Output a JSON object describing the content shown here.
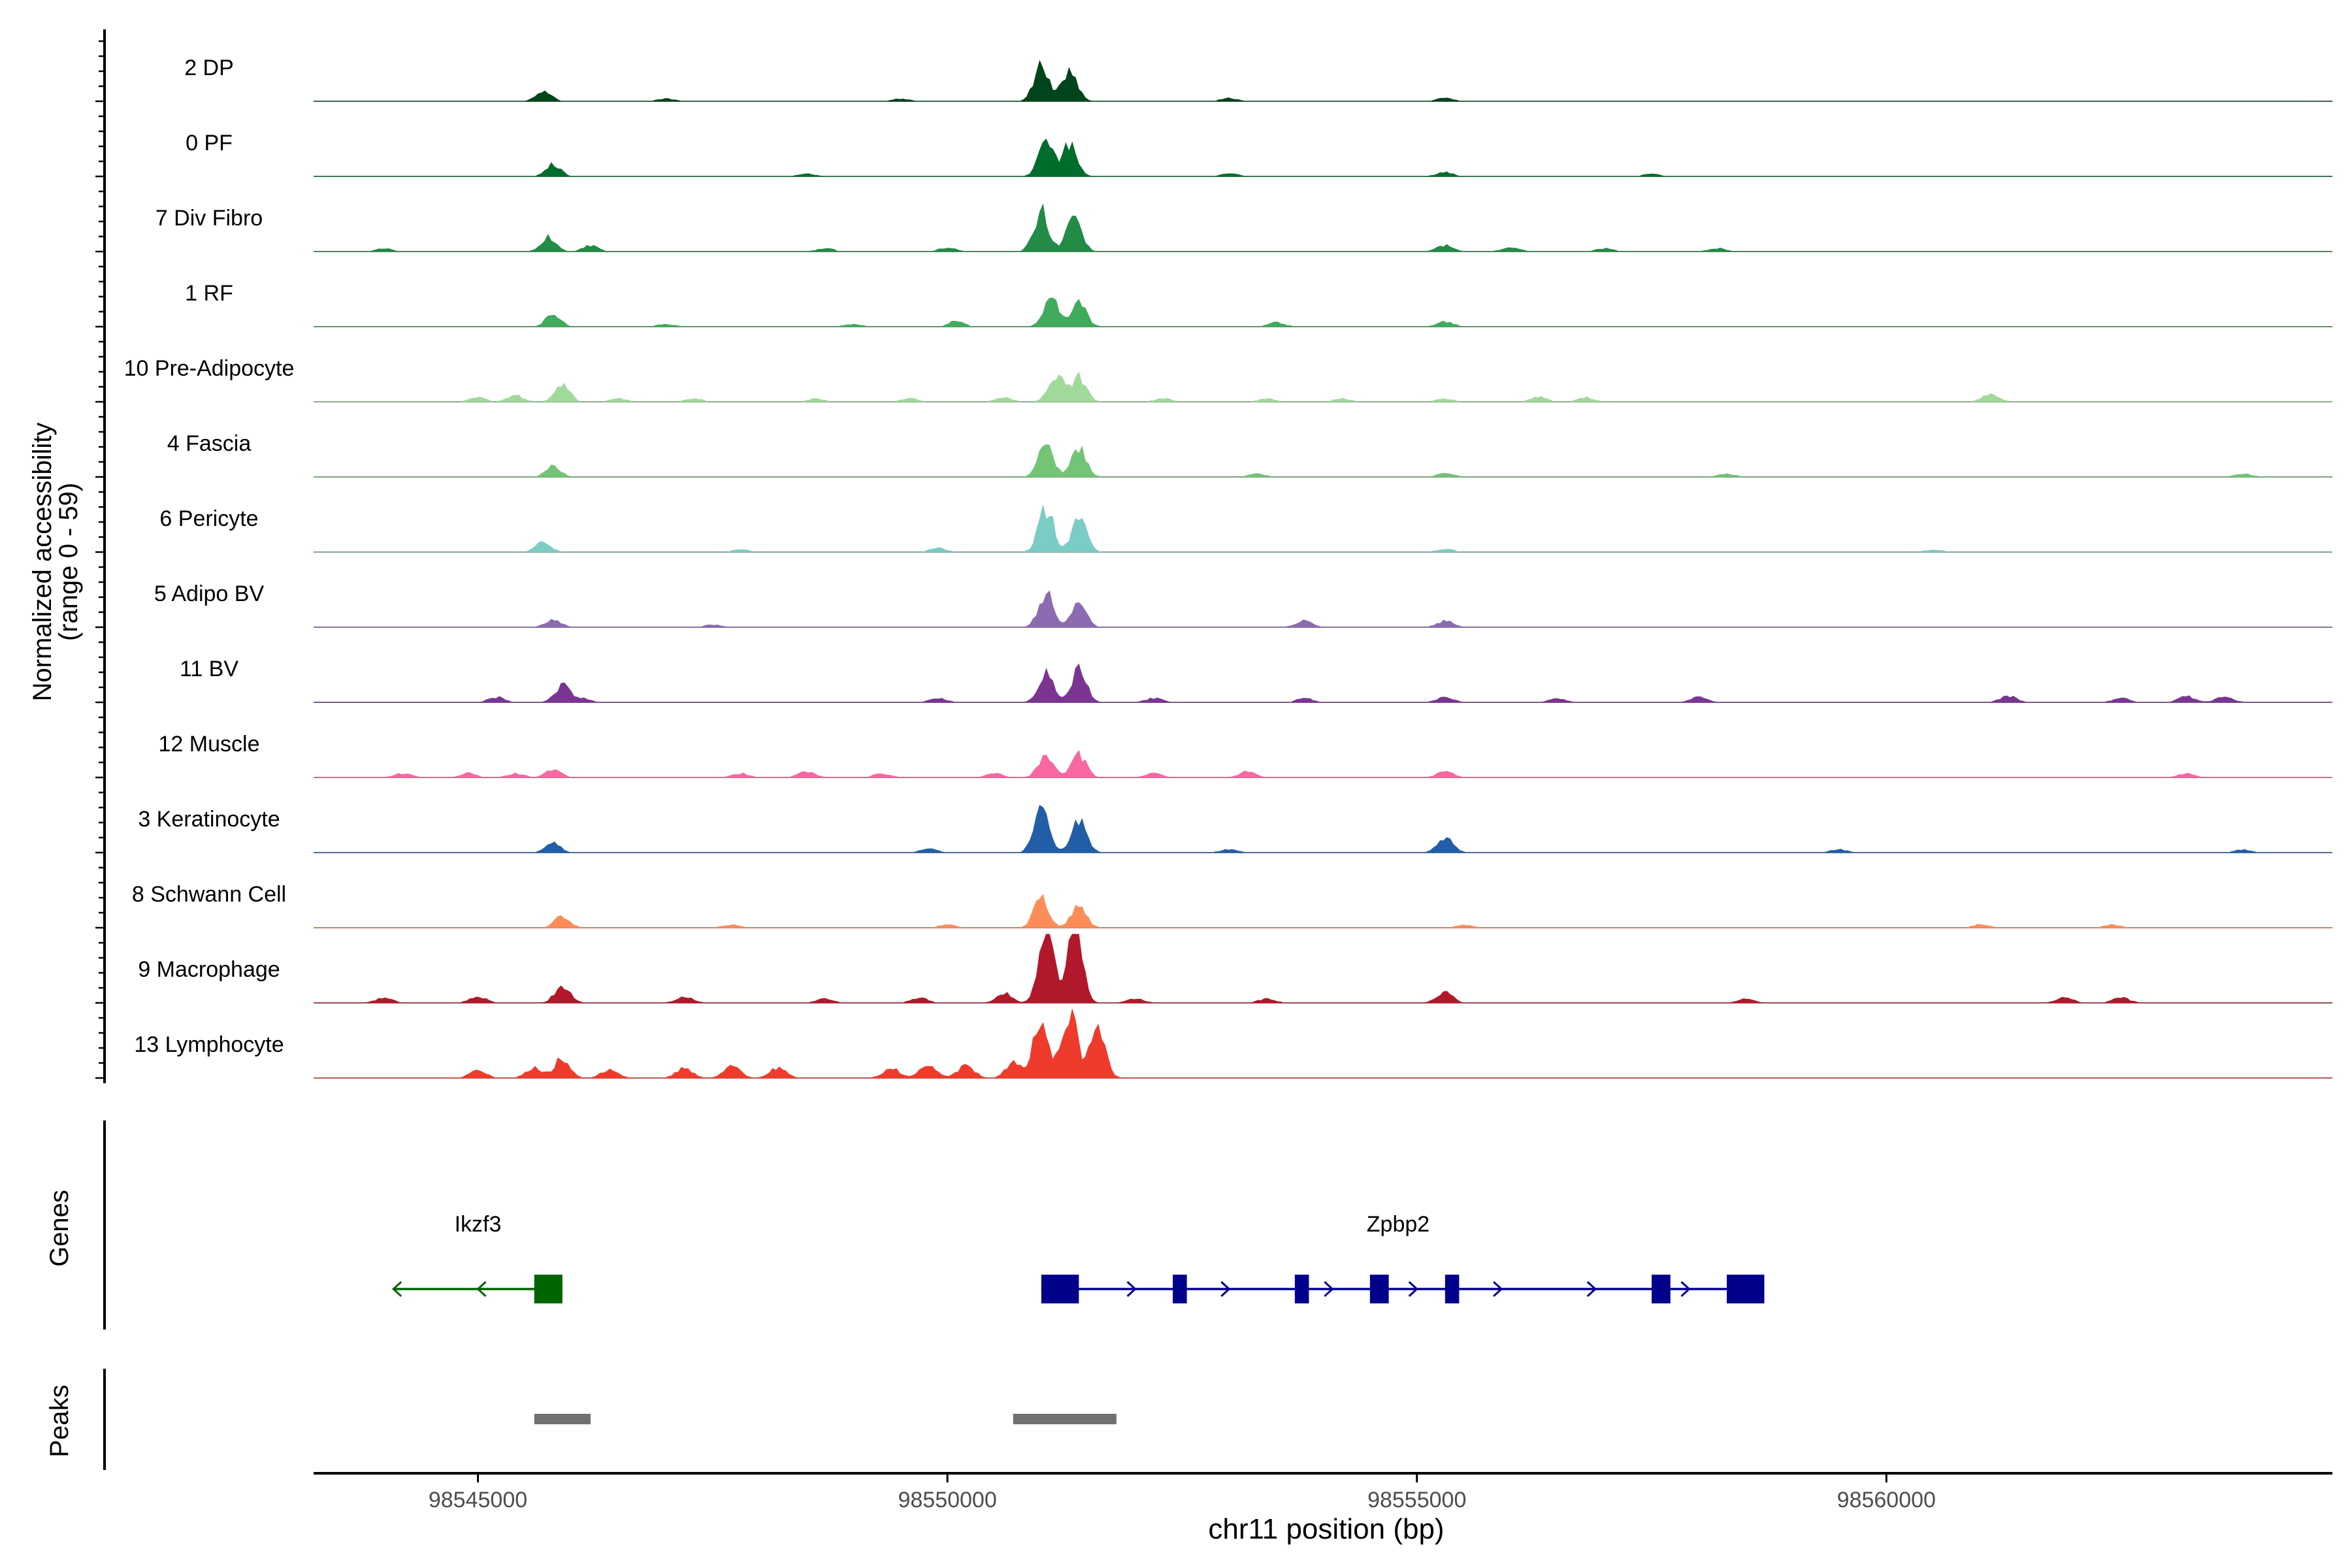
{
  "chart_data": {
    "type": "area",
    "title": "",
    "ylabel_line1": "Normalized accessibility",
    "ylabel_line2": "(range 0 - 59)",
    "y_range": [
      0,
      59
    ],
    "xlabel": "chr11 position (bp)",
    "x_range": [
      98543250,
      98564750
    ],
    "x_ticks": [
      98545000,
      98550000,
      98555000,
      98560000
    ],
    "x_tick_labels": [
      "98545000",
      "98550000",
      "98555000",
      "98560000"
    ],
    "genes_label": "Genes",
    "peaks_label": "Peaks",
    "tracks": [
      {
        "name": "2 DP",
        "color": "#00441b",
        "peaks": [
          [
            98545700,
            5
          ],
          [
            98551000,
            17
          ],
          [
            98551300,
            16
          ]
        ],
        "bumps": [
          [
            98553000,
            1.5
          ],
          [
            98555300,
            1.5
          ],
          [
            98547000,
            1.2
          ],
          [
            98549500,
            1.2
          ]
        ]
      },
      {
        "name": "0 PF",
        "color": "#006d2c",
        "peaks": [
          [
            98545800,
            6
          ],
          [
            98551050,
            17
          ],
          [
            98551300,
            15
          ]
        ],
        "bumps": [
          [
            98555300,
            2
          ],
          [
            98553000,
            1.5
          ],
          [
            98548500,
            1.2
          ],
          [
            98557500,
            1.2
          ]
        ]
      },
      {
        "name": "7 Div Fibro",
        "color": "#238b45",
        "peaks": [
          [
            98545750,
            7
          ],
          [
            98546200,
            3
          ],
          [
            98551000,
            20
          ],
          [
            98551350,
            17
          ]
        ],
        "bumps": [
          [
            98544000,
            1.5
          ],
          [
            98548700,
            1.5
          ],
          [
            98550000,
            2
          ],
          [
            98555300,
            3
          ],
          [
            98556000,
            2
          ],
          [
            98557000,
            1.5
          ],
          [
            98558200,
            1.5
          ]
        ]
      },
      {
        "name": "1 RF",
        "color": "#41ab5d",
        "peaks": [
          [
            98545800,
            6
          ],
          [
            98550100,
            3
          ],
          [
            98551100,
            14
          ],
          [
            98551400,
            12
          ]
        ],
        "bumps": [
          [
            98553500,
            2
          ],
          [
            98555300,
            2.5
          ],
          [
            98547000,
            1.2
          ],
          [
            98549000,
            1.2
          ]
        ]
      },
      {
        "name": "10 Pre-Adipocyte",
        "color": "#a1d99b",
        "peaks": [
          [
            98545900,
            8
          ],
          [
            98551150,
            14
          ],
          [
            98551400,
            12
          ]
        ],
        "bumps": [
          [
            98545000,
            2
          ],
          [
            98545400,
            3
          ],
          [
            98546500,
            1.5
          ],
          [
            98547300,
            1.5
          ],
          [
            98548600,
            1.5
          ],
          [
            98549600,
            1.5
          ],
          [
            98550600,
            2
          ],
          [
            98552300,
            1.5
          ],
          [
            98553400,
            1.5
          ],
          [
            98554200,
            1.5
          ],
          [
            98555300,
            1.5
          ],
          [
            98556300,
            2.5
          ],
          [
            98556800,
            2
          ],
          [
            98561100,
            4
          ]
        ]
      },
      {
        "name": "4 Fascia",
        "color": "#74c476",
        "peaks": [
          [
            98545800,
            5
          ],
          [
            98551050,
            16
          ],
          [
            98551400,
            14
          ]
        ],
        "bumps": [
          [
            98553300,
            1.5
          ],
          [
            98555300,
            2
          ],
          [
            98558300,
            1.5
          ],
          [
            98563800,
            1.5
          ]
        ]
      },
      {
        "name": "6 Pericyte",
        "color": "#7bccc4",
        "peaks": [
          [
            98545700,
            5
          ],
          [
            98551050,
            22
          ],
          [
            98551400,
            17
          ]
        ],
        "bumps": [
          [
            98549900,
            2
          ],
          [
            98555300,
            1.5
          ],
          [
            98547800,
            1.2
          ],
          [
            98560500,
            1.2
          ]
        ]
      },
      {
        "name": "5 Adipo BV",
        "color": "#8c6bb1",
        "peaks": [
          [
            98545800,
            4
          ],
          [
            98551050,
            17
          ],
          [
            98551400,
            12
          ]
        ],
        "bumps": [
          [
            98553800,
            3
          ],
          [
            98555300,
            3
          ],
          [
            98547500,
            1.2
          ]
        ]
      },
      {
        "name": "11 BV",
        "color": "#7a3592",
        "peaks": [
          [
            98545900,
            8
          ],
          [
            98551050,
            14
          ],
          [
            98551400,
            17
          ]
        ],
        "bumps": [
          [
            98545200,
            2.5
          ],
          [
            98546100,
            2
          ],
          [
            98549900,
            2
          ],
          [
            98552200,
            2
          ],
          [
            98553800,
            2
          ],
          [
            98555300,
            2.5
          ],
          [
            98556500,
            2
          ],
          [
            98558000,
            2.5
          ],
          [
            98561300,
            3
          ],
          [
            98562500,
            2
          ],
          [
            98563200,
            3
          ],
          [
            98563600,
            3
          ]
        ]
      },
      {
        "name": "12 Muscle",
        "color": "#f768a1",
        "peaks": [
          [
            98545800,
            4
          ],
          [
            98551050,
            12
          ],
          [
            98551400,
            11
          ]
        ],
        "bumps": [
          [
            98544200,
            2
          ],
          [
            98544900,
            2
          ],
          [
            98545400,
            2
          ],
          [
            98547800,
            2
          ],
          [
            98548500,
            3
          ],
          [
            98549300,
            2
          ],
          [
            98550500,
            2
          ],
          [
            98552200,
            2
          ],
          [
            98553200,
            3
          ],
          [
            98555300,
            3
          ],
          [
            98563200,
            2
          ]
        ]
      },
      {
        "name": "3 Keratinocyte",
        "color": "#225ea8",
        "peaks": [
          [
            98545800,
            5
          ],
          [
            98551000,
            21
          ],
          [
            98551400,
            16
          ]
        ],
        "bumps": [
          [
            98549800,
            2
          ],
          [
            98555300,
            7
          ],
          [
            98553000,
            1.5
          ],
          [
            98559500,
            1.5
          ],
          [
            98563800,
            1.5
          ]
        ]
      },
      {
        "name": "8 Schwann Cell",
        "color": "#fc8d59",
        "peaks": [
          [
            98545900,
            6
          ],
          [
            98551000,
            14
          ],
          [
            98551400,
            11
          ]
        ],
        "bumps": [
          [
            98547700,
            1.5
          ],
          [
            98550000,
            1.5
          ],
          [
            98555500,
            1.5
          ],
          [
            98561000,
            1.5
          ],
          [
            98562400,
            1.5
          ]
        ]
      },
      {
        "name": "9 Macrophage",
        "color": "#b2182b",
        "peaks": [
          [
            98545900,
            9
          ],
          [
            98551050,
            39
          ],
          [
            98551350,
            41
          ],
          [
            98550600,
            5
          ]
        ],
        "bumps": [
          [
            98544000,
            2.5
          ],
          [
            98545000,
            3
          ],
          [
            98547200,
            3
          ],
          [
            98548700,
            2
          ],
          [
            98549700,
            2.5
          ],
          [
            98552000,
            2
          ],
          [
            98553400,
            2
          ],
          [
            98555300,
            5
          ],
          [
            98558500,
            2
          ],
          [
            98561900,
            3
          ],
          [
            98562500,
            2.5
          ]
        ]
      },
      {
        "name": "13 Lymphocyte",
        "color": "#ef3b2c",
        "peaks": [
          [
            98545900,
            10
          ],
          [
            98551000,
            30
          ],
          [
            98551300,
            35
          ],
          [
            98551600,
            28
          ],
          [
            98550700,
            8
          ]
        ],
        "bumps": [
          [
            98545000,
            4
          ],
          [
            98545600,
            5
          ],
          [
            98546400,
            4
          ],
          [
            98547200,
            5
          ],
          [
            98547700,
            6
          ],
          [
            98548200,
            5
          ],
          [
            98549400,
            5
          ],
          [
            98549800,
            7
          ],
          [
            98550200,
            6
          ]
        ]
      }
    ],
    "genes": [
      {
        "name": "Ikzf3",
        "strand": "-",
        "color": "#006400",
        "start": 98544100,
        "end": 98545900,
        "label_x": 98545000,
        "exons": [
          [
            98545600,
            98545900
          ]
        ],
        "arrows": [
          98544100,
          98545000
        ]
      },
      {
        "name": "Zpbp2",
        "strand": "+",
        "color": "#00008b",
        "start": 98551000,
        "end": 98558700,
        "label_x": 98554800,
        "exons": [
          [
            98551000,
            98551400
          ],
          [
            98552400,
            98552550
          ],
          [
            98553700,
            98553850
          ],
          [
            98554500,
            98554700
          ],
          [
            98555300,
            98555450
          ],
          [
            98557500,
            98557700
          ],
          [
            98558300,
            98558700
          ]
        ],
        "arrows": [
          98552000,
          98553000,
          98554100,
          98555000,
          98555900,
          98556900,
          98557900
        ]
      }
    ],
    "peak_regions": [
      [
        98545600,
        98546200
      ],
      [
        98550700,
        98551800
      ]
    ],
    "peak_color": "#707070",
    "grid": false,
    "legend": "none"
  }
}
